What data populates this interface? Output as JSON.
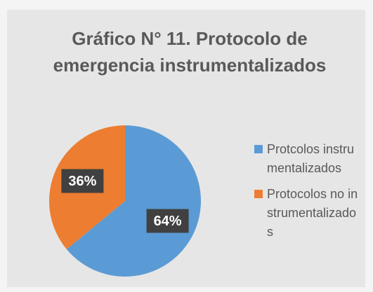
{
  "chart_data": {
    "type": "pie",
    "title": "Gráfico N° 11. Protocolo de emergencia instrumentalizados",
    "categories": [
      "Protcolos instrumentalizados",
      "Protocolos no instrumentalizados"
    ],
    "values": [
      64,
      36
    ],
    "value_labels": [
      "64%",
      "36%"
    ],
    "colors": [
      "#5b9bd5",
      "#ed7d31"
    ],
    "legend": "right"
  }
}
